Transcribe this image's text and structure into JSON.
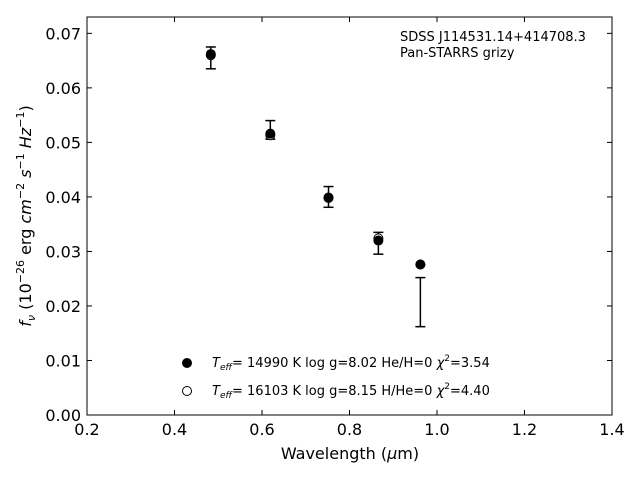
{
  "chart_data": {
    "type": "scatter",
    "annotation_lines": [
      "SDSS J114531.14+414708.3",
      "Pan-STARRS grizy"
    ],
    "xlabel": {
      "text": "Wavelength (",
      "greek": "μ",
      "unit": "m)"
    },
    "ylabel": {
      "f": "f",
      "nu": "ν",
      "rest": " (10",
      "exp1": "−26",
      "erg": " erg ",
      "cm": "cm",
      "exp2": "−2",
      "s": " s",
      "exp3": "−1",
      "hz": " Hz",
      "exp4": "−1",
      "close": ")"
    },
    "xlim": [
      0.2,
      1.4
    ],
    "ylim": [
      0.0,
      0.073
    ],
    "x_ticks": [
      0.2,
      0.4,
      0.6,
      0.8,
      1.0,
      1.2,
      1.4
    ],
    "x_tick_labels": [
      "0.2",
      "0.4",
      "0.6",
      "0.8",
      "1.0",
      "1.2",
      "1.4"
    ],
    "y_ticks": [
      0.0,
      0.01,
      0.02,
      0.03,
      0.04,
      0.05,
      0.06,
      0.07
    ],
    "y_tick_labels": [
      "0.00",
      "0.01",
      "0.02",
      "0.03",
      "0.04",
      "0.05",
      "0.06",
      "0.07"
    ],
    "grid": false,
    "legend_placement": "lower-left",
    "observed": {
      "x": [
        0.483,
        0.619,
        0.752,
        0.866,
        0.962
      ],
      "y": [
        0.0655,
        0.0523,
        0.04,
        0.0315,
        0.0207
      ],
      "err": [
        0.002,
        0.0017,
        0.0019,
        0.002,
        0.0045
      ]
    },
    "series": [
      {
        "marker": "filled-circle",
        "x": [
          0.483,
          0.619,
          0.752,
          0.866,
          0.962
        ],
        "y": [
          0.0662,
          0.0516,
          0.0398,
          0.032,
          0.0276
        ],
        "label": {
          "t": "T",
          "eff": "eff",
          "rest": "= 14990 K  log g=8.02  He/H=0  ",
          "chi": "χ",
          "sq": "2",
          "val": "=3.54"
        }
      },
      {
        "marker": "open-circle",
        "x": [
          0.483,
          0.619,
          0.752,
          0.866,
          0.962
        ],
        "y": [
          0.066,
          0.0513,
          0.0399,
          0.0324,
          0.0276
        ],
        "label": {
          "t": "T",
          "eff": "eff",
          "rest": "= 16103 K  log g=8.15  H/He=0  ",
          "chi": "χ",
          "sq": "2",
          "val": "=4.40"
        }
      }
    ],
    "colors": {
      "marker": "#000000",
      "axes": "#000000",
      "background": "#ffffff"
    }
  }
}
